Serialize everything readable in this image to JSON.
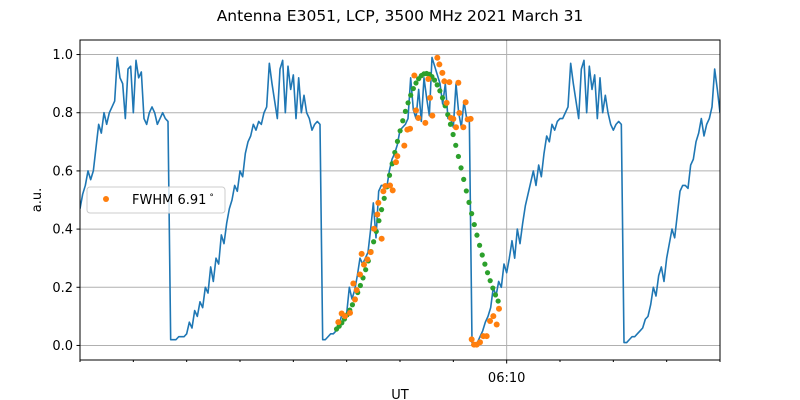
{
  "chart_data": {
    "type": "line",
    "title": "Antenna E3051, LCP, 3500 MHz 2021 March 31",
    "xlabel": "UT",
    "ylabel": "a.u.",
    "xlim_minutes_after_0600": [
      2,
      14
    ],
    "ylim": [
      -0.05,
      1.05
    ],
    "grid": true,
    "yticks": [
      0.0,
      0.2,
      0.4,
      0.6,
      0.8,
      1.0
    ],
    "ytick_labels": [
      "0.0",
      "0.2",
      "0.4",
      "0.6",
      "0.8",
      "1.0"
    ],
    "xticks_major": [
      {
        "value": 10,
        "label": "06:10"
      }
    ],
    "xticks_minor": [
      2,
      3,
      4,
      5,
      6,
      7,
      8,
      9,
      11,
      12,
      13,
      14
    ],
    "legend": {
      "placement": "center-left",
      "entries": [
        {
          "label": "FWHM 6.91",
          "suffix": "°",
          "series": "measured_scan"
        }
      ]
    },
    "series": [
      {
        "name": "antenna_signal",
        "color": "#1f77b4",
        "style": "line",
        "x_start": 2.0,
        "x_step": 0.05,
        "y": [
          0.47,
          0.52,
          0.55,
          0.6,
          0.57,
          0.6,
          0.68,
          0.76,
          0.73,
          0.8,
          0.76,
          0.8,
          0.82,
          0.84,
          0.99,
          0.92,
          0.9,
          0.78,
          0.95,
          0.96,
          0.8,
          0.98,
          0.92,
          0.94,
          0.78,
          0.76,
          0.8,
          0.82,
          0.8,
          0.76,
          0.78,
          0.8,
          0.78,
          0.77,
          0.02,
          0.02,
          0.02,
          0.03,
          0.03,
          0.03,
          0.04,
          0.08,
          0.06,
          0.12,
          0.1,
          0.15,
          0.13,
          0.2,
          0.18,
          0.27,
          0.22,
          0.3,
          0.28,
          0.38,
          0.35,
          0.42,
          0.47,
          0.5,
          0.55,
          0.53,
          0.6,
          0.58,
          0.66,
          0.7,
          0.72,
          0.76,
          0.74,
          0.77,
          0.76,
          0.8,
          0.82,
          0.97,
          0.9,
          0.84,
          0.78,
          0.95,
          0.98,
          0.8,
          0.96,
          0.88,
          0.93,
          0.78,
          0.92,
          0.8,
          0.86,
          0.8,
          0.78,
          0.74,
          0.76,
          0.77,
          0.76,
          0.02,
          0.02,
          0.03,
          0.04,
          0.04,
          0.05,
          0.06,
          0.1,
          0.1,
          0.11,
          0.2,
          0.16,
          0.19,
          0.24,
          0.3,
          0.28,
          0.3,
          0.32,
          0.4,
          0.49,
          0.37,
          0.53,
          0.55,
          0.55,
          0.54,
          0.6,
          0.64,
          0.66,
          0.69,
          0.74,
          0.75,
          0.76,
          0.78,
          0.92,
          0.81,
          0.78,
          0.88,
          0.77,
          0.92,
          0.85,
          0.79,
          0.99,
          0.96,
          0.93,
          0.9,
          0.83,
          0.9,
          0.78,
          0.78,
          0.75,
          0.9,
          0.8,
          0.75,
          0.84,
          0.78,
          0.78,
          0.01,
          0.0,
          0.01,
          0.03,
          0.05,
          0.08,
          0.1,
          0.13,
          0.2,
          0.17,
          0.22,
          0.2,
          0.28,
          0.25,
          0.3,
          0.36,
          0.3,
          0.4,
          0.35,
          0.42,
          0.48,
          0.52,
          0.56,
          0.6,
          0.55,
          0.62,
          0.58,
          0.66,
          0.72,
          0.7,
          0.76,
          0.74,
          0.77,
          0.78,
          0.78,
          0.8,
          0.82,
          0.97,
          0.9,
          0.84,
          0.78,
          0.95,
          0.98,
          0.8,
          0.96,
          0.88,
          0.93,
          0.78,
          0.92,
          0.8,
          0.86,
          0.8,
          0.76,
          0.74,
          0.76,
          0.77,
          0.76,
          0.01,
          0.01,
          0.02,
          0.03,
          0.03,
          0.04,
          0.05,
          0.06,
          0.09,
          0.1,
          0.14,
          0.2,
          0.17,
          0.24,
          0.27,
          0.22,
          0.3,
          0.35,
          0.4,
          0.37,
          0.45,
          0.53,
          0.55,
          0.55,
          0.54,
          0.62,
          0.64,
          0.7,
          0.73,
          0.78,
          0.72,
          0.76,
          0.78,
          0.82,
          0.95,
          0.88,
          0.8
        ]
      },
      {
        "name": "measured_scan",
        "color": "#ff7f0e",
        "style": "points",
        "points": [
          [
            6.844,
            0.08
          ],
          [
            6.906,
            0.11
          ],
          [
            6.969,
            0.101
          ],
          [
            7.063,
            0.112
          ],
          [
            7.125,
            0.213
          ],
          [
            7.156,
            0.158
          ],
          [
            7.188,
            0.19
          ],
          [
            7.25,
            0.244
          ],
          [
            7.281,
            0.315
          ],
          [
            7.325,
            0.278
          ],
          [
            7.388,
            0.296
          ],
          [
            7.45,
            0.321
          ],
          [
            7.513,
            0.401
          ],
          [
            7.575,
            0.45
          ],
          [
            7.594,
            0.49
          ],
          [
            7.656,
            0.367
          ],
          [
            7.688,
            0.53
          ],
          [
            7.725,
            0.548
          ],
          [
            7.813,
            0.55
          ],
          [
            7.863,
            0.533
          ],
          [
            7.925,
            0.63
          ],
          [
            7.95,
            0.651
          ],
          [
            8.081,
            0.687
          ],
          [
            8.138,
            0.742
          ],
          [
            8.188,
            0.745
          ],
          [
            8.269,
            0.928
          ],
          [
            8.3,
            0.808
          ],
          [
            8.344,
            0.782
          ],
          [
            8.475,
            0.765
          ],
          [
            8.531,
            0.916
          ],
          [
            8.563,
            0.851
          ],
          [
            8.606,
            0.79
          ],
          [
            8.7,
            0.989
          ],
          [
            8.738,
            0.966
          ],
          [
            8.794,
            0.937
          ],
          [
            8.831,
            0.908
          ],
          [
            8.875,
            0.834
          ],
          [
            8.925,
            0.905
          ],
          [
            8.956,
            0.782
          ],
          [
            9.0,
            0.779
          ],
          [
            9.05,
            0.75
          ],
          [
            9.094,
            0.903
          ],
          [
            9.113,
            0.799
          ],
          [
            9.188,
            0.75
          ],
          [
            9.231,
            0.836
          ],
          [
            9.269,
            0.777
          ],
          [
            9.325,
            0.779
          ],
          [
            9.344,
            0.021
          ],
          [
            9.388,
            0.003
          ],
          [
            9.438,
            0.003
          ],
          [
            9.5,
            0.011
          ],
          [
            9.563,
            0.032
          ],
          [
            9.625,
            0.032
          ],
          [
            9.688,
            0.084
          ],
          [
            9.75,
            0.101
          ],
          [
            9.813,
            0.072
          ],
          [
            9.856,
            0.126
          ]
        ]
      },
      {
        "name": "gaussian_fit",
        "color": "#2ca02c",
        "style": "points",
        "model": "gaussian",
        "amplitude": 0.935,
        "center": 8.49,
        "sigma": 0.709,
        "x_start": 6.81,
        "x_end": 9.84,
        "n_points": 62
      }
    ]
  }
}
